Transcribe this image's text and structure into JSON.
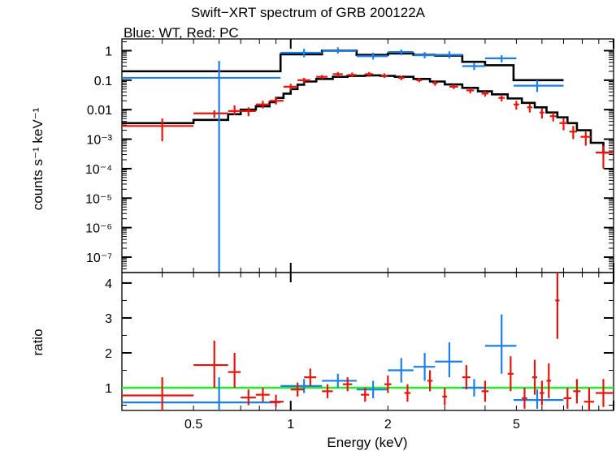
{
  "chart_data": [
    {
      "type": "scatter",
      "title": "Swift−XRT spectrum of GRB 200122A",
      "subtitle": "Blue: WT, Red: PC",
      "ylabel": "counts s⁻¹ keV⁻¹",
      "xscale": "log",
      "yscale": "log",
      "xlim": [
        0.3,
        10
      ],
      "ylim": [
        3e-08,
        2.5
      ],
      "ytick_labels": [
        "1",
        "0.1",
        "0.01",
        "10⁻³",
        "10⁻⁴",
        "10⁻⁵",
        "10⁻⁶",
        "10⁻⁷"
      ],
      "ytick_values": [
        1,
        0.1,
        0.01,
        0.001,
        0.0001,
        1e-05,
        1e-06,
        1e-07
      ],
      "series": [
        {
          "color": "#1a7fe8",
          "points": [
            {
              "x": 0.6,
              "y": 0.12,
              "xlo": 0.3,
              "xhi": 0.93,
              "ylo": 3e-08,
              "yhi": 0.45
            },
            {
              "x": 1.1,
              "y": 0.85,
              "xlo": 0.93,
              "xhi": 1.25,
              "ylo": 0.6,
              "yhi": 1.15
            },
            {
              "x": 1.4,
              "y": 1.0,
              "xlo": 1.25,
              "xhi": 1.6,
              "ylo": 0.8,
              "yhi": 1.3
            },
            {
              "x": 1.8,
              "y": 0.65,
              "xlo": 1.6,
              "xhi": 2.0,
              "ylo": 0.5,
              "yhi": 0.85
            },
            {
              "x": 2.2,
              "y": 0.9,
              "xlo": 2.0,
              "xhi": 2.4,
              "ylo": 0.7,
              "yhi": 1.1
            },
            {
              "x": 2.6,
              "y": 0.7,
              "xlo": 2.4,
              "xhi": 2.8,
              "ylo": 0.55,
              "yhi": 0.9
            },
            {
              "x": 3.1,
              "y": 0.72,
              "xlo": 2.8,
              "xhi": 3.4,
              "ylo": 0.55,
              "yhi": 0.95
            },
            {
              "x": 3.7,
              "y": 0.3,
              "xlo": 3.4,
              "xhi": 4.0,
              "ylo": 0.22,
              "yhi": 0.4
            },
            {
              "x": 4.5,
              "y": 0.55,
              "xlo": 4.0,
              "xhi": 5.0,
              "ylo": 0.4,
              "yhi": 0.7
            },
            {
              "x": 5.8,
              "y": 0.065,
              "xlo": 4.9,
              "xhi": 7.0,
              "ylo": 0.04,
              "yhi": 0.1
            }
          ]
        },
        {
          "color": "#e8140a",
          "points": [
            {
              "x": 0.4,
              "y": 0.0028,
              "xlo": 0.3,
              "xhi": 0.5,
              "ylo": 0.00085,
              "yhi": 0.005
            },
            {
              "x": 0.58,
              "y": 0.0075,
              "xlo": 0.5,
              "xhi": 0.64,
              "ylo": 0.0053,
              "yhi": 0.0095
            },
            {
              "x": 0.67,
              "y": 0.009,
              "xlo": 0.64,
              "xhi": 0.7,
              "ylo": 0.0065,
              "yhi": 0.014
            },
            {
              "x": 0.74,
              "y": 0.009,
              "xlo": 0.7,
              "xhi": 0.78,
              "ylo": 0.006,
              "yhi": 0.012
            },
            {
              "x": 0.82,
              "y": 0.015,
              "xlo": 0.78,
              "xhi": 0.86,
              "ylo": 0.011,
              "yhi": 0.02
            },
            {
              "x": 0.9,
              "y": 0.02,
              "xlo": 0.86,
              "xhi": 0.95,
              "ylo": 0.015,
              "yhi": 0.026
            },
            {
              "x": 1.0,
              "y": 0.06,
              "xlo": 0.95,
              "xhi": 1.05,
              "ylo": 0.045,
              "yhi": 0.075
            },
            {
              "x": 1.1,
              "y": 0.1,
              "xlo": 1.05,
              "xhi": 1.15,
              "ylo": 0.08,
              "yhi": 0.12
            },
            {
              "x": 1.25,
              "y": 0.13,
              "xlo": 1.2,
              "xhi": 1.3,
              "ylo": 0.11,
              "yhi": 0.15
            },
            {
              "x": 1.4,
              "y": 0.16,
              "xlo": 1.35,
              "xhi": 1.45,
              "ylo": 0.13,
              "yhi": 0.19
            },
            {
              "x": 1.55,
              "y": 0.15,
              "xlo": 1.5,
              "xhi": 1.6,
              "ylo": 0.13,
              "yhi": 0.18
            },
            {
              "x": 1.75,
              "y": 0.16,
              "xlo": 1.7,
              "xhi": 1.8,
              "ylo": 0.13,
              "yhi": 0.19
            },
            {
              "x": 1.95,
              "y": 0.14,
              "xlo": 1.9,
              "xhi": 2.0,
              "ylo": 0.12,
              "yhi": 0.17
            },
            {
              "x": 2.2,
              "y": 0.12,
              "xlo": 2.15,
              "xhi": 2.25,
              "ylo": 0.1,
              "yhi": 0.14
            },
            {
              "x": 2.5,
              "y": 0.1,
              "xlo": 2.45,
              "xhi": 2.55,
              "ylo": 0.085,
              "yhi": 0.12
            },
            {
              "x": 2.8,
              "y": 0.08,
              "xlo": 2.75,
              "xhi": 2.85,
              "ylo": 0.065,
              "yhi": 0.095
            },
            {
              "x": 3.2,
              "y": 0.06,
              "xlo": 3.1,
              "xhi": 3.3,
              "ylo": 0.05,
              "yhi": 0.072
            },
            {
              "x": 3.6,
              "y": 0.045,
              "xlo": 3.5,
              "xhi": 3.7,
              "ylo": 0.036,
              "yhi": 0.055
            },
            {
              "x": 4.0,
              "y": 0.035,
              "xlo": 3.9,
              "xhi": 4.1,
              "ylo": 0.028,
              "yhi": 0.043
            },
            {
              "x": 4.5,
              "y": 0.025,
              "xlo": 4.4,
              "xhi": 4.6,
              "ylo": 0.019,
              "yhi": 0.032
            },
            {
              "x": 5.0,
              "y": 0.015,
              "xlo": 4.9,
              "xhi": 5.1,
              "ylo": 0.01,
              "yhi": 0.02
            },
            {
              "x": 5.5,
              "y": 0.012,
              "xlo": 5.4,
              "xhi": 5.6,
              "ylo": 0.008,
              "yhi": 0.016
            },
            {
              "x": 6.0,
              "y": 0.008,
              "xlo": 5.9,
              "xhi": 6.1,
              "ylo": 0.005,
              "yhi": 0.011
            },
            {
              "x": 6.5,
              "y": 0.006,
              "xlo": 6.35,
              "xhi": 6.65,
              "ylo": 0.004,
              "yhi": 0.008
            },
            {
              "x": 7.0,
              "y": 0.0035,
              "xlo": 6.8,
              "xhi": 7.2,
              "ylo": 0.002,
              "yhi": 0.005
            },
            {
              "x": 7.5,
              "y": 0.0018,
              "xlo": 7.3,
              "xhi": 7.7,
              "ylo": 0.001,
              "yhi": 0.0028
            },
            {
              "x": 8.2,
              "y": 0.0012,
              "xlo": 7.9,
              "xhi": 8.5,
              "ylo": 0.0006,
              "yhi": 0.0018
            },
            {
              "x": 9.3,
              "y": 0.00035,
              "xlo": 8.8,
              "xhi": 10,
              "ylo": 0.0001,
              "yhi": 0.0006
            }
          ]
        }
      ],
      "models": [
        {
          "color": "#000000",
          "steps": [
            [
              0.3,
              0.2
            ],
            [
              0.93,
              0.75
            ],
            [
              1.25,
              1.0
            ],
            [
              1.6,
              0.72
            ],
            [
              2.0,
              0.8
            ],
            [
              2.4,
              0.72
            ],
            [
              2.8,
              0.68
            ],
            [
              3.4,
              0.42
            ],
            [
              4.0,
              0.32
            ],
            [
              4.9,
              0.1
            ],
            [
              7.0,
              0.1
            ]
          ]
        },
        {
          "color": "#000000",
          "steps": [
            [
              0.3,
              0.0035
            ],
            [
              0.5,
              0.0045
            ],
            [
              0.64,
              0.007
            ],
            [
              0.7,
              0.01
            ],
            [
              0.78,
              0.013
            ],
            [
              0.86,
              0.018
            ],
            [
              0.9,
              0.025
            ],
            [
              0.95,
              0.035
            ],
            [
              1.0,
              0.05
            ],
            [
              1.05,
              0.07
            ],
            [
              1.1,
              0.09
            ],
            [
              1.2,
              0.11
            ],
            [
              1.35,
              0.13
            ],
            [
              1.5,
              0.14
            ],
            [
              1.7,
              0.145
            ],
            [
              1.9,
              0.14
            ],
            [
              2.1,
              0.13
            ],
            [
              2.4,
              0.11
            ],
            [
              2.7,
              0.09
            ],
            [
              3.0,
              0.072
            ],
            [
              3.4,
              0.055
            ],
            [
              3.8,
              0.042
            ],
            [
              4.2,
              0.033
            ],
            [
              4.7,
              0.024
            ],
            [
              5.2,
              0.017
            ],
            [
              5.7,
              0.012
            ],
            [
              6.2,
              0.008
            ],
            [
              6.7,
              0.0055
            ],
            [
              7.2,
              0.0035
            ],
            [
              7.7,
              0.002
            ],
            [
              8.5,
              0.00075
            ],
            [
              9.3,
              0.00035
            ],
            [
              10,
              0.00035
            ]
          ]
        }
      ]
    },
    {
      "type": "scatter",
      "xlabel": "Energy (keV)",
      "ylabel": "ratio",
      "xscale": "log",
      "xlim": [
        0.3,
        10
      ],
      "ylim": [
        0.35,
        4.3
      ],
      "xtick_labels": [
        "0.5",
        "1",
        "2",
        "5"
      ],
      "xtick_values": [
        0.5,
        1,
        2,
        5
      ],
      "ytick_labels": [
        "1",
        "2",
        "3",
        "4"
      ],
      "ytick_values": [
        1,
        2,
        3,
        4
      ],
      "reference_line": {
        "y": 1,
        "color": "#2ae82a"
      },
      "series": [
        {
          "color": "#1a7fe8",
          "points": [
            {
              "x": 0.6,
              "y": 0.58,
              "xlo": 0.3,
              "xhi": 0.93,
              "ylo": 0.35,
              "yhi": 1.3
            },
            {
              "x": 1.1,
              "y": 1.05,
              "xlo": 0.93,
              "xhi": 1.25,
              "ylo": 0.85,
              "yhi": 1.25
            },
            {
              "x": 1.4,
              "y": 1.2,
              "xlo": 1.25,
              "xhi": 1.6,
              "ylo": 1.0,
              "yhi": 1.4
            },
            {
              "x": 1.8,
              "y": 0.95,
              "xlo": 1.6,
              "xhi": 2.0,
              "ylo": 0.7,
              "yhi": 1.2
            },
            {
              "x": 2.2,
              "y": 1.5,
              "xlo": 2.0,
              "xhi": 2.4,
              "ylo": 1.15,
              "yhi": 1.85
            },
            {
              "x": 2.6,
              "y": 1.6,
              "xlo": 2.4,
              "xhi": 2.8,
              "ylo": 1.2,
              "yhi": 2.0
            },
            {
              "x": 3.1,
              "y": 1.75,
              "xlo": 2.8,
              "xhi": 3.4,
              "ylo": 1.3,
              "yhi": 2.3
            },
            {
              "x": 3.7,
              "y": 1.0,
              "xlo": 3.4,
              "xhi": 4.0,
              "ylo": 0.75,
              "yhi": 1.25
            },
            {
              "x": 4.5,
              "y": 2.2,
              "xlo": 4.0,
              "xhi": 5.0,
              "ylo": 1.4,
              "yhi": 3.1
            },
            {
              "x": 5.8,
              "y": 0.65,
              "xlo": 4.9,
              "xhi": 7.0,
              "ylo": 0.4,
              "yhi": 0.95
            }
          ]
        },
        {
          "color": "#e8140a",
          "points": [
            {
              "x": 0.4,
              "y": 0.78,
              "xlo": 0.3,
              "xhi": 0.5,
              "ylo": 0.35,
              "yhi": 1.3
            },
            {
              "x": 0.58,
              "y": 1.65,
              "xlo": 0.5,
              "xhi": 0.64,
              "ylo": 1.0,
              "yhi": 2.35
            },
            {
              "x": 0.67,
              "y": 1.45,
              "xlo": 0.64,
              "xhi": 0.7,
              "ylo": 1.0,
              "yhi": 2.0
            },
            {
              "x": 0.74,
              "y": 0.72,
              "xlo": 0.7,
              "xhi": 0.78,
              "ylo": 0.5,
              "yhi": 0.95
            },
            {
              "x": 0.82,
              "y": 0.8,
              "xlo": 0.78,
              "xhi": 0.86,
              "ylo": 0.6,
              "yhi": 1.0
            },
            {
              "x": 0.9,
              "y": 0.6,
              "xlo": 0.86,
              "xhi": 0.95,
              "ylo": 0.45,
              "yhi": 0.8
            },
            {
              "x": 1.05,
              "y": 0.95,
              "xlo": 1.0,
              "xhi": 1.1,
              "ylo": 0.75,
              "yhi": 1.15
            },
            {
              "x": 1.15,
              "y": 1.3,
              "xlo": 1.1,
              "xhi": 1.2,
              "ylo": 1.05,
              "yhi": 1.55
            },
            {
              "x": 1.3,
              "y": 0.9,
              "xlo": 1.25,
              "xhi": 1.35,
              "ylo": 0.7,
              "yhi": 1.1
            },
            {
              "x": 1.5,
              "y": 1.1,
              "xlo": 1.45,
              "xhi": 1.55,
              "ylo": 0.9,
              "yhi": 1.3
            },
            {
              "x": 1.7,
              "y": 0.8,
              "xlo": 1.65,
              "xhi": 1.75,
              "ylo": 0.6,
              "yhi": 1.0
            },
            {
              "x": 2.0,
              "y": 1.1,
              "xlo": 1.95,
              "xhi": 2.05,
              "ylo": 0.85,
              "yhi": 1.35
            },
            {
              "x": 2.3,
              "y": 0.85,
              "xlo": 2.25,
              "xhi": 2.35,
              "ylo": 0.6,
              "yhi": 1.1
            },
            {
              "x": 2.7,
              "y": 1.2,
              "xlo": 2.65,
              "xhi": 2.75,
              "ylo": 0.9,
              "yhi": 1.5
            },
            {
              "x": 3.0,
              "y": 0.75,
              "xlo": 2.95,
              "xhi": 3.05,
              "ylo": 0.5,
              "yhi": 1.0
            },
            {
              "x": 3.5,
              "y": 1.3,
              "xlo": 3.4,
              "xhi": 3.6,
              "ylo": 0.95,
              "yhi": 1.65
            },
            {
              "x": 4.0,
              "y": 0.9,
              "xlo": 3.9,
              "xhi": 4.1,
              "ylo": 0.6,
              "yhi": 1.2
            },
            {
              "x": 4.8,
              "y": 1.4,
              "xlo": 4.7,
              "xhi": 4.9,
              "ylo": 0.9,
              "yhi": 1.9
            },
            {
              "x": 5.3,
              "y": 0.7,
              "xlo": 5.2,
              "xhi": 5.4,
              "ylo": 0.4,
              "yhi": 1.0
            },
            {
              "x": 5.7,
              "y": 1.3,
              "xlo": 5.6,
              "xhi": 5.8,
              "ylo": 0.8,
              "yhi": 1.8
            },
            {
              "x": 6.0,
              "y": 0.85,
              "xlo": 5.9,
              "xhi": 6.1,
              "ylo": 0.5,
              "yhi": 1.2
            },
            {
              "x": 6.3,
              "y": 1.2,
              "xlo": 6.2,
              "xhi": 6.4,
              "ylo": 0.7,
              "yhi": 1.7
            },
            {
              "x": 6.7,
              "y": 3.5,
              "xlo": 6.6,
              "xhi": 6.8,
              "ylo": 2.4,
              "yhi": 4.3
            },
            {
              "x": 7.2,
              "y": 0.7,
              "xlo": 7.0,
              "xhi": 7.4,
              "ylo": 0.4,
              "yhi": 1.0
            },
            {
              "x": 7.7,
              "y": 0.9,
              "xlo": 7.5,
              "xhi": 7.9,
              "ylo": 0.55,
              "yhi": 1.25
            },
            {
              "x": 8.4,
              "y": 0.6,
              "xlo": 8.1,
              "xhi": 8.7,
              "ylo": 0.35,
              "yhi": 1.0
            },
            {
              "x": 9.3,
              "y": 0.85,
              "xlo": 8.8,
              "xhi": 10,
              "ylo": 0.45,
              "yhi": 1.25
            }
          ]
        }
      ]
    }
  ]
}
